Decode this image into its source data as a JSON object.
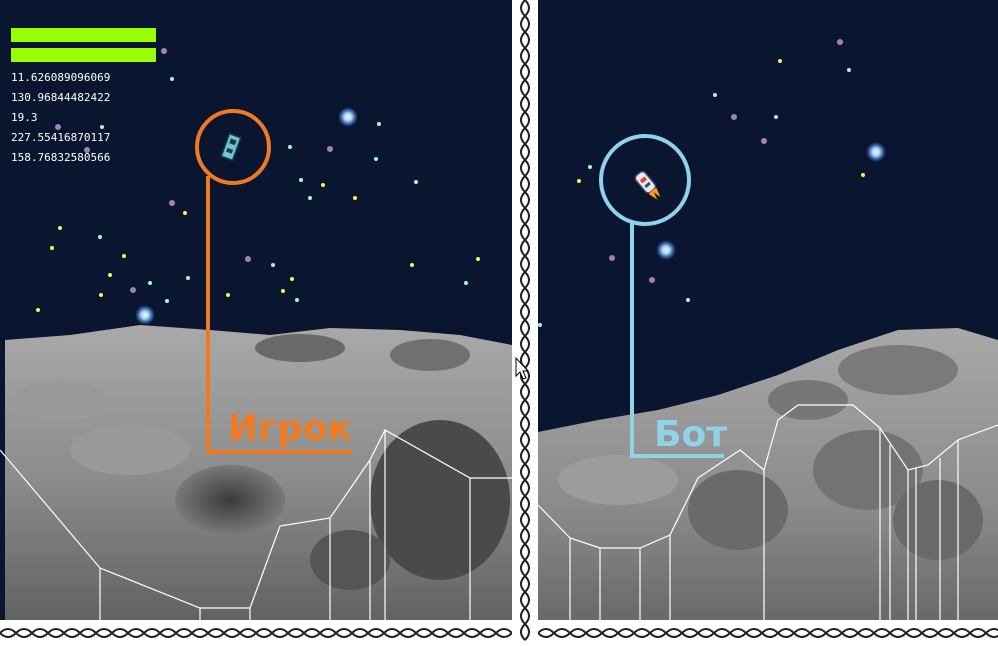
{
  "hud": {
    "fuel_bar_color": "#99ff00",
    "readouts": [
      "11.626089096069",
      "130.96844482422",
      "19.3",
      "227.55416870117",
      "158.76832580566"
    ]
  },
  "labels": {
    "player": "Игрок",
    "bot": "Бот"
  },
  "colors": {
    "player_accent": "#f07a22",
    "bot_accent": "#8fd3ea",
    "sky": "#0a1530"
  },
  "icons": {
    "player_ship": "lander-ship-icon",
    "bot_ship": "rocket-ship-icon",
    "cursor": "mouse-cursor-icon"
  }
}
